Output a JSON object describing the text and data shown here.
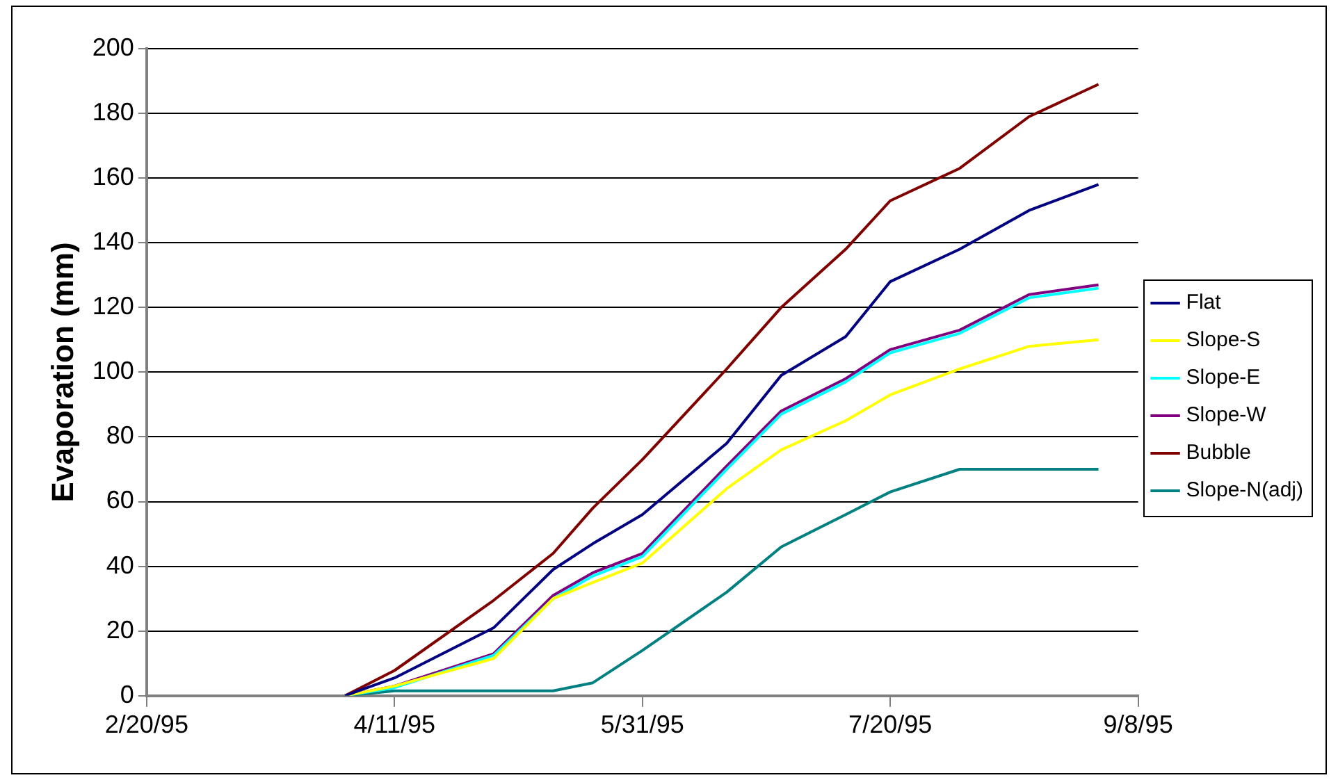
{
  "chart_data": {
    "type": "line",
    "ylabel": "Evaporation (mm)",
    "x": [
      "1995-04-01",
      "1995-04-11",
      "1995-05-01",
      "1995-05-13",
      "1995-05-21",
      "1995-05-31",
      "1995-06-17",
      "1995-06-28",
      "1995-07-11",
      "1995-07-20",
      "1995-08-03",
      "1995-08-17",
      "1995-08-31"
    ],
    "series": [
      {
        "name": "Flat",
        "color": "#000080",
        "values": [
          0,
          5.5,
          21,
          39,
          47,
          56,
          78,
          99,
          111,
          128,
          138,
          150,
          158
        ]
      },
      {
        "name": "Slope-S",
        "color": "#ffff00",
        "values": [
          0,
          3,
          11.5,
          30,
          35,
          41,
          64,
          76,
          85,
          93,
          101,
          108,
          110
        ]
      },
      {
        "name": "Slope-E",
        "color": "#00ffff",
        "values": [
          0,
          2.5,
          12.5,
          30,
          37,
          43,
          70,
          87,
          97,
          106,
          112,
          123,
          126
        ]
      },
      {
        "name": "Slope-W",
        "color": "#800080",
        "values": [
          0,
          3,
          13,
          31,
          38,
          44,
          71,
          88,
          98,
          107,
          113,
          124,
          127
        ]
      },
      {
        "name": "Bubble",
        "color": "#800000",
        "values": [
          0,
          7.8,
          29.5,
          44,
          58,
          73,
          101,
          120,
          138,
          153,
          163,
          179,
          189
        ]
      },
      {
        "name": "Slope-N(adj)",
        "color": "#008080",
        "values": [
          0,
          1.5,
          1.5,
          1.5,
          4,
          14,
          32,
          46,
          56,
          63,
          70,
          70,
          70
        ]
      }
    ],
    "xlim": [
      "1995-02-20",
      "1995-09-08"
    ],
    "xticks": [
      {
        "value": "1995-02-20",
        "label": "2/20/95"
      },
      {
        "value": "1995-04-11",
        "label": "4/11/95"
      },
      {
        "value": "1995-05-31",
        "label": "5/31/95"
      },
      {
        "value": "1995-07-20",
        "label": "7/20/95"
      },
      {
        "value": "1995-09-08",
        "label": "9/8/95"
      }
    ],
    "ylim": [
      0,
      200
    ],
    "yticks": [
      0,
      20,
      40,
      60,
      80,
      100,
      120,
      140,
      160,
      180,
      200
    ],
    "grid": "y",
    "legend": "right",
    "marker": "none",
    "line_style": "solid"
  }
}
